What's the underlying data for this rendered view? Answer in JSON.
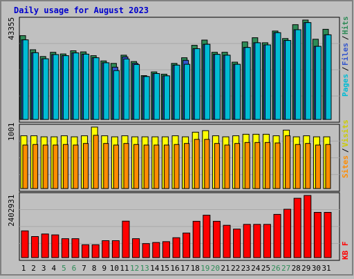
{
  "chart_data": {
    "type": "bar",
    "title": "Daily usage for August 2023",
    "days": [
      "1",
      "2",
      "3",
      "4",
      "5",
      "6",
      "7",
      "8",
      "9",
      "10",
      "11",
      "12",
      "13",
      "14",
      "15",
      "16",
      "17",
      "18",
      "19",
      "20",
      "21",
      "22",
      "23",
      "24",
      "25",
      "26",
      "27",
      "28",
      "29",
      "30",
      "31"
    ],
    "weekend_days": [
      "5",
      "6",
      "12",
      "13",
      "19",
      "20",
      "26",
      "27"
    ],
    "panels": [
      {
        "id": "hits",
        "axis_max_label": "43355",
        "ymax": 43355,
        "right_labels": [
          {
            "text": "Hits",
            "color": "#2e8b57"
          },
          {
            "text": "Files",
            "color": "#3355cc"
          },
          {
            "text": "Pages",
            "color": "#00bcd4"
          }
        ],
        "series": [
          {
            "name": "Hits",
            "color": "#2e8b57",
            "values": [
              39800,
              33100,
              29900,
              31900,
              31100,
              32600,
              32100,
              30300,
              27800,
              26600,
              30500,
              27500,
              20800,
              22600,
              21500,
              26600,
              29300,
              35200,
              37700,
              31900,
              31900,
              27200,
              36800,
              38800,
              36400,
              42000,
              38400,
              45000,
              47200,
              38100,
              42800
            ]
          },
          {
            "name": "Files",
            "color": "#3355cc",
            "values": [
              37800,
              31700,
              28800,
              30800,
              30300,
              31600,
              31000,
              29300,
              26900,
              24800,
              29700,
              26600,
              20400,
              21800,
              20700,
              25800,
              28100,
              33600,
              35700,
              30900,
              30500,
              26200,
              34200,
              36400,
              35400,
              41200,
              37500,
              42600,
              46000,
              34700,
              40200
            ]
          },
          {
            "name": "Pages",
            "color": "#00bcd4",
            "values": [
              37800,
              31700,
              28800,
              30800,
              30300,
              31600,
              31000,
              29300,
              26900,
              23200,
              28700,
              26100,
              20400,
              21800,
              20700,
              25800,
              26200,
              33600,
              35700,
              30900,
              30500,
              26200,
              34200,
              36400,
              35400,
              41200,
              37500,
              42600,
              46000,
              34700,
              40200
            ]
          }
        ]
      },
      {
        "id": "visits",
        "axis_max_label": "1001",
        "ymax": 1001,
        "right_labels": [
          {
            "text": "Visits",
            "color": "#cccc00"
          },
          {
            "text": "Sites",
            "color": "#ff8c00"
          }
        ],
        "series": [
          {
            "name": "Visits",
            "color": "#ffff00",
            "values": [
              1030,
              1030,
              1010,
              1010,
              1030,
              1010,
              1030,
              1200,
              1030,
              1010,
              1030,
              1010,
              1010,
              1010,
              1010,
              1030,
              1010,
              1100,
              1130,
              1030,
              1010,
              1030,
              1060,
              1060,
              1060,
              1030,
              1140,
              1010,
              1030,
              1010,
              1010
            ]
          },
          {
            "name": "Sites",
            "color": "#ff8c00",
            "values": [
              850,
              860,
              850,
              850,
              860,
              850,
              880,
              1040,
              880,
              850,
              880,
              860,
              850,
              850,
              850,
              860,
              880,
              960,
              960,
              880,
              850,
              880,
              900,
              900,
              900,
              890,
              1030,
              860,
              880,
              850,
              860
            ]
          }
        ]
      },
      {
        "id": "kbf",
        "axis_max_label": "2402931",
        "ymax": 2402931,
        "right_labels": [
          {
            "text": "KB F",
            "color": "#ff0000"
          }
        ],
        "series": [
          {
            "name": "KB F",
            "color": "#ff0000",
            "values": [
              1980000,
              1560000,
              1750000,
              1680000,
              1400000,
              1400000,
              950000,
              950000,
              1250000,
              1250000,
              2700000,
              1400000,
              1040000,
              1120000,
              1180000,
              1470000,
              1820000,
              2690000,
              3140000,
              2690000,
              2390000,
              2110000,
              2460000,
              2460000,
              2460000,
              3200000,
              3580000,
              4390000,
              4600000,
              3350000,
              3350000
            ]
          }
        ]
      }
    ]
  }
}
